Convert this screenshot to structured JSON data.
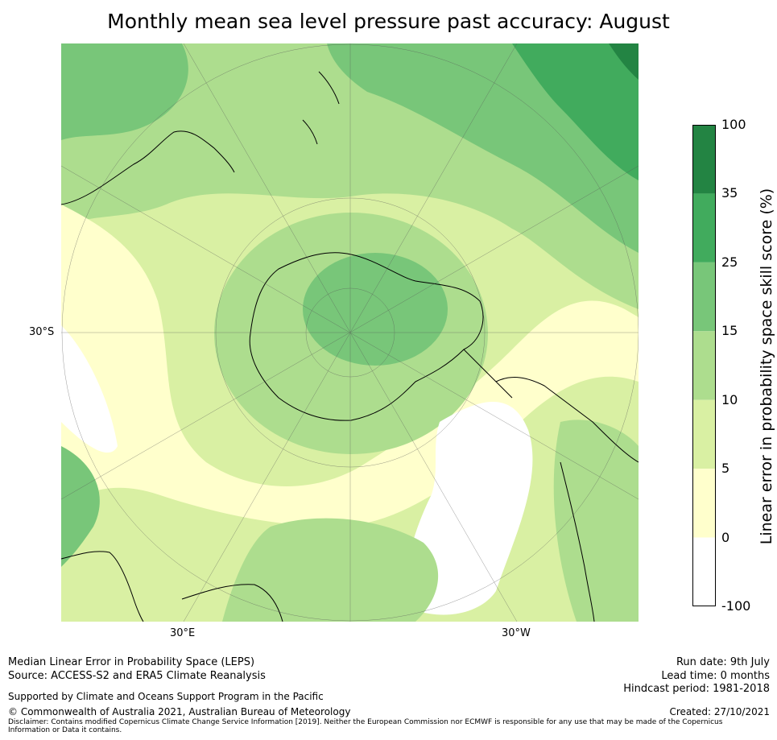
{
  "title": "Monthly mean sea level pressure past accuracy: August",
  "map": {
    "projection": "south-polar-stereographic",
    "lat_label": "30°S",
    "lon_labels": [
      "30°E",
      "30°W"
    ],
    "colors": {
      "white": "#ffffff",
      "pale_yellow": "#ffffcc",
      "yellow_green": "#d9f0a3",
      "light_green": "#addd8e",
      "green": "#78c679",
      "mid_green": "#41ab5d",
      "dark_green": "#238443"
    }
  },
  "colorbar": {
    "label": "Linear error in probability space skill score (%)",
    "bins": [
      {
        "low": -100,
        "high": 0,
        "color": "#ffffff"
      },
      {
        "low": 0,
        "high": 5,
        "color": "#ffffcc"
      },
      {
        "low": 5,
        "high": 10,
        "color": "#d9f0a3"
      },
      {
        "low": 10,
        "high": 15,
        "color": "#addd8e"
      },
      {
        "low": 15,
        "high": 25,
        "color": "#78c679"
      },
      {
        "low": 25,
        "high": 35,
        "color": "#41ab5d"
      },
      {
        "low": 35,
        "high": 100,
        "color": "#238443"
      }
    ],
    "ticks": [
      "100",
      "35",
      "25",
      "15",
      "10",
      "5",
      "0",
      "-100"
    ]
  },
  "footer": {
    "line1": "Median Linear Error in Probability Space (LEPS)",
    "line2": "Source: ACCESS-S2 and ERA5 Climate Reanalysis",
    "supported": "Supported by Climate and Oceans Support Program in the Pacific",
    "copyright": "© Commonwealth of Australia 2021, Australian Bureau of Meteorology",
    "disclaimer": "Disclaimer: Contains modified Copernicus Climate Change Service Information [2019]. Neither the European Commission nor ECMWF is responsible for any use that may be made of the Copernicus Information or Data it contains.",
    "run_date": "Run date: 9th July",
    "lead_time": "Lead time: 0 months",
    "hindcast": "Hindcast period: 1981-2018",
    "created": "Created: 27/10/2021"
  }
}
